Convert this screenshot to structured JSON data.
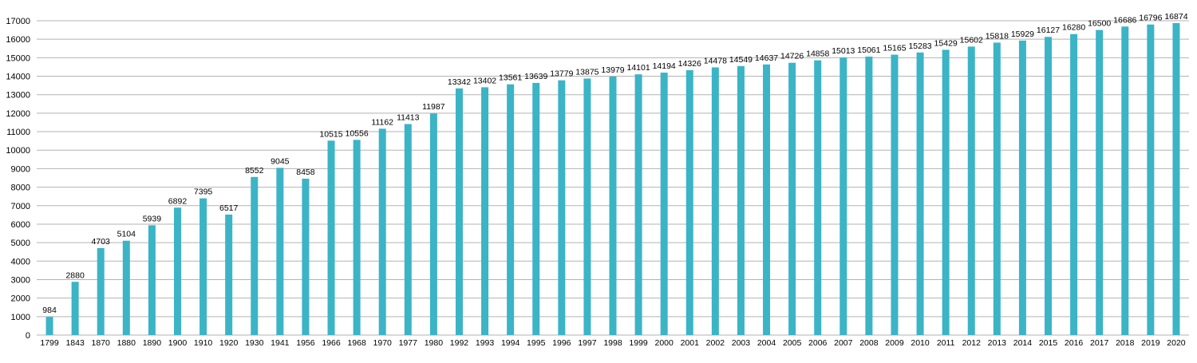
{
  "chart_data": {
    "type": "bar",
    "title": "",
    "xlabel": "",
    "ylabel": "",
    "ylim": [
      0,
      17000
    ],
    "y_ticks": [
      0,
      1000,
      2000,
      3000,
      4000,
      5000,
      6000,
      7000,
      8000,
      9000,
      10000,
      11000,
      12000,
      13000,
      14000,
      15000,
      16000,
      17000
    ],
    "grid": true,
    "legend": "none",
    "bar_color": "#3bb4c6",
    "grid_color": "#b3b3b3",
    "categories": [
      "1799",
      "1843",
      "1870",
      "1880",
      "1890",
      "1900",
      "1910",
      "1920",
      "1930",
      "1941",
      "1956",
      "1966",
      "1968",
      "1970",
      "1977",
      "1980",
      "1992",
      "1993",
      "1994",
      "1995",
      "1996",
      "1997",
      "1998",
      "1999",
      "2000",
      "2001",
      "2002",
      "2003",
      "2004",
      "2005",
      "2006",
      "2007",
      "2008",
      "2009",
      "2010",
      "2011",
      "2012",
      "2013",
      "2014",
      "2015",
      "2016",
      "2017",
      "2018",
      "2019",
      "2020"
    ],
    "values": [
      984,
      2880,
      4703,
      5104,
      5939,
      6892,
      7395,
      6517,
      8552,
      9045,
      8458,
      10515,
      10556,
      11162,
      11413,
      11987,
      13342,
      13402,
      13561,
      13639,
      13779,
      13875,
      13979,
      14101,
      14194,
      14326,
      14478,
      14549,
      14637,
      14726,
      14858,
      15013,
      15061,
      15165,
      15283,
      15429,
      15602,
      15818,
      15929,
      16127,
      16280,
      16500,
      16686,
      16796,
      16874
    ]
  }
}
